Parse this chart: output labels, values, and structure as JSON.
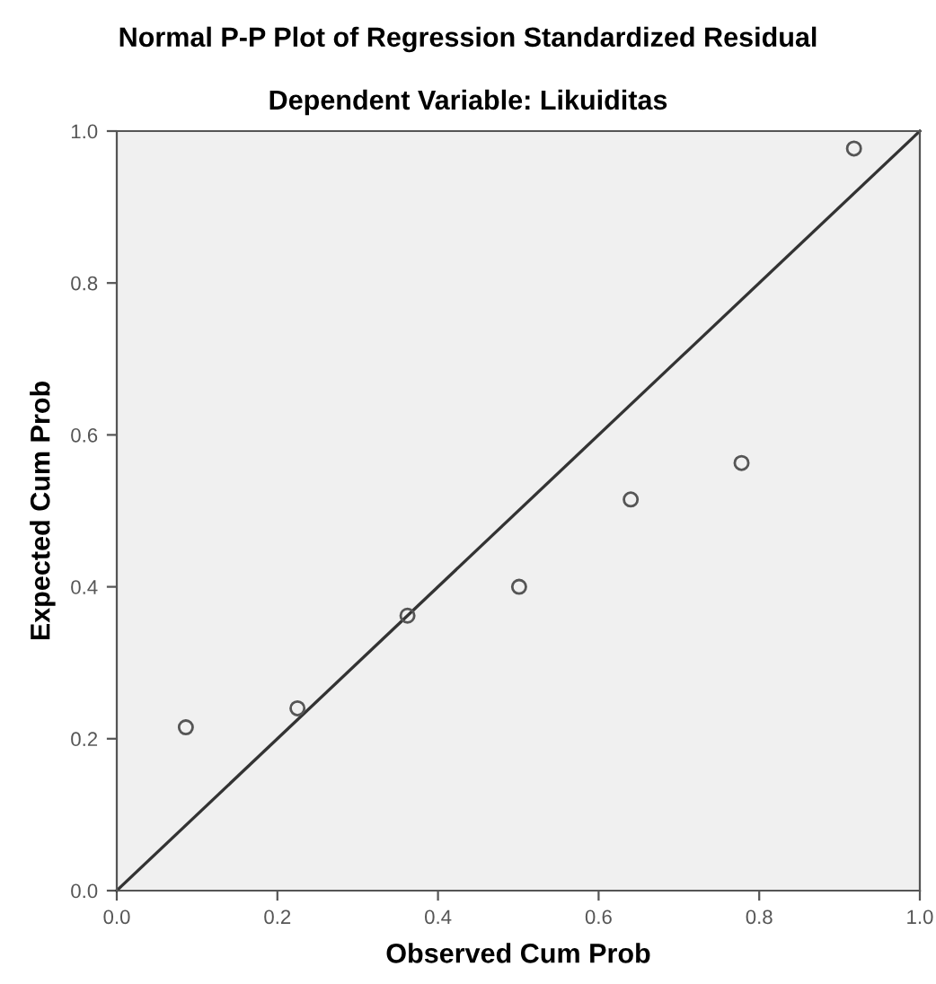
{
  "chart_data": {
    "type": "scatter",
    "title": "Normal P-P Plot of Regression Standardized Residual",
    "subtitle": "Dependent Variable: Likuiditas",
    "xlabel": "Observed Cum Prob",
    "ylabel": "Expected Cum Prob",
    "series": [
      {
        "color": "#555555",
        "marker": "circle",
        "x": [
          0.086,
          0.225,
          0.362,
          0.501,
          0.64,
          0.778,
          0.918
        ],
        "values": [
          0.215,
          0.24,
          0.362,
          0.4,
          0.515,
          0.563,
          0.977
        ]
      },
      {
        "type": "line",
        "color": "#333333",
        "line_style": "solid",
        "x": [
          0.0,
          1.0
        ],
        "values": [
          0.0,
          1.0
        ]
      }
    ],
    "xlim": [
      0.0,
      1.0
    ],
    "ylim": [
      0.0,
      1.0
    ],
    "xticks": [
      {
        "value": 0.0,
        "label": "0.0"
      },
      {
        "value": 0.2,
        "label": "0.2"
      },
      {
        "value": 0.4,
        "label": "0.4"
      },
      {
        "value": 0.6,
        "label": "0.6"
      },
      {
        "value": 0.8,
        "label": "0.8"
      },
      {
        "value": 1.0,
        "label": "1.0"
      }
    ],
    "yticks": [
      {
        "value": 0.0,
        "label": "0.0"
      },
      {
        "value": 0.2,
        "label": "0.2"
      },
      {
        "value": 0.4,
        "label": "0.4"
      },
      {
        "value": 0.6,
        "label": "0.6"
      },
      {
        "value": 0.8,
        "label": "0.8"
      },
      {
        "value": 1.0,
        "label": "1.0"
      }
    ],
    "grid": false
  }
}
